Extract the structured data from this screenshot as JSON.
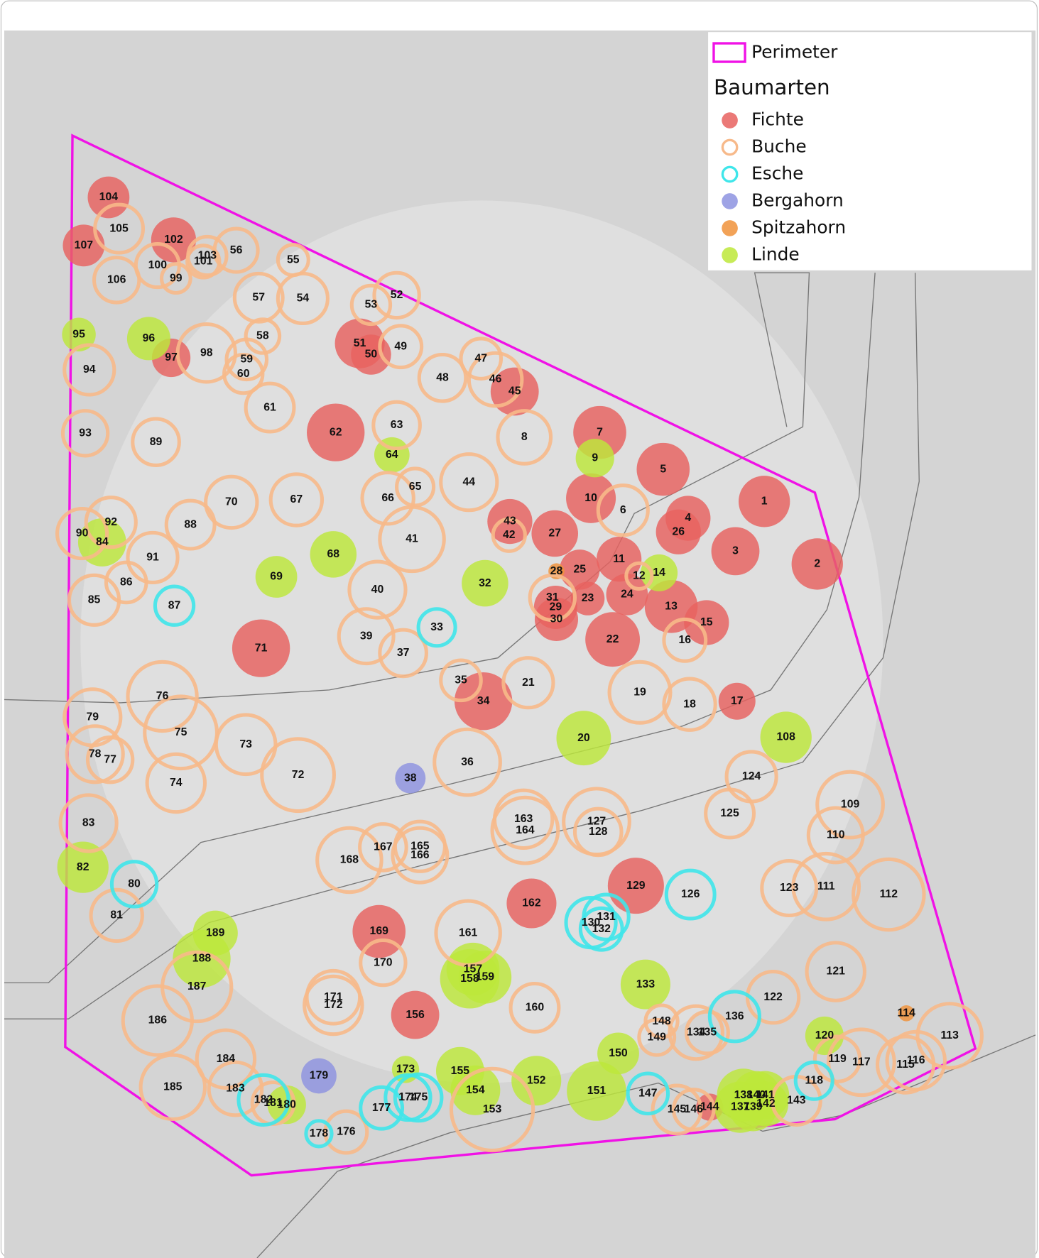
{
  "legend": {
    "perimeter": "Perimeter",
    "title": "Baumarten",
    "species": [
      {
        "name": "Fichte",
        "color": "#e8615f",
        "filled": true,
        "trees": [
          "1",
          "2",
          "3",
          "4",
          "5",
          "7",
          "10",
          "11",
          "13",
          "15",
          "17",
          "22",
          "23",
          "24",
          "25",
          "26",
          "27",
          "29",
          "30",
          "34",
          "43",
          "45",
          "50",
          "51",
          "62",
          "71",
          "97",
          "102",
          "104",
          "107",
          "129",
          "144",
          "156",
          "162",
          "169"
        ]
      },
      {
        "name": "Buche",
        "color": "#f7b98a",
        "filled": false,
        "trees": [
          "6",
          "8",
          "12",
          "16",
          "18",
          "19",
          "21",
          "31",
          "35",
          "36",
          "37",
          "39",
          "40",
          "41",
          "42",
          "44",
          "46",
          "47",
          "48",
          "49",
          "52",
          "53",
          "54",
          "55",
          "56",
          "57",
          "58",
          "59",
          "60",
          "61",
          "63",
          "65",
          "66",
          "67",
          "70",
          "72",
          "73",
          "74",
          "75",
          "76",
          "77",
          "78",
          "79",
          "81",
          "83",
          "85",
          "86",
          "88",
          "89",
          "90",
          "91",
          "92",
          "93",
          "94",
          "98",
          "99",
          "100",
          "101",
          "103",
          "105",
          "106",
          "109",
          "110",
          "111",
          "112",
          "113",
          "115",
          "116",
          "117",
          "119",
          "121",
          "122",
          "123",
          "124",
          "125",
          "127",
          "128",
          "134",
          "135",
          "143",
          "145",
          "146",
          "148",
          "149",
          "153",
          "160",
          "161",
          "163",
          "164",
          "165",
          "166",
          "167",
          "168",
          "170",
          "171",
          "172",
          "176",
          "181",
          "183",
          "184",
          "185",
          "186",
          "187"
        ]
      },
      {
        "name": "Esche",
        "color": "#3fe6ea",
        "filled": false,
        "trees": [
          "33",
          "80",
          "87",
          "118",
          "126",
          "130",
          "131",
          "132",
          "136",
          "147",
          "174",
          "175",
          "177",
          "178",
          "182"
        ]
      },
      {
        "name": "Bergahorn",
        "color": "#8d93e0",
        "filled": true,
        "trees": [
          "38",
          "179"
        ]
      },
      {
        "name": "Spitzahorn",
        "color": "#f0923a",
        "filled": true,
        "trees": [
          "28",
          "114"
        ]
      },
      {
        "name": "Linde",
        "color": "#bde83a",
        "filled": true,
        "trees": [
          "9",
          "14",
          "20",
          "32",
          "64",
          "68",
          "69",
          "82",
          "84",
          "95",
          "96",
          "108",
          "120",
          "133",
          "137",
          "138",
          "139",
          "140",
          "141",
          "142",
          "150",
          "151",
          "152",
          "154",
          "155",
          "157",
          "158",
          "159",
          "173",
          "180",
          "188",
          "189"
        ]
      }
    ]
  }
}
